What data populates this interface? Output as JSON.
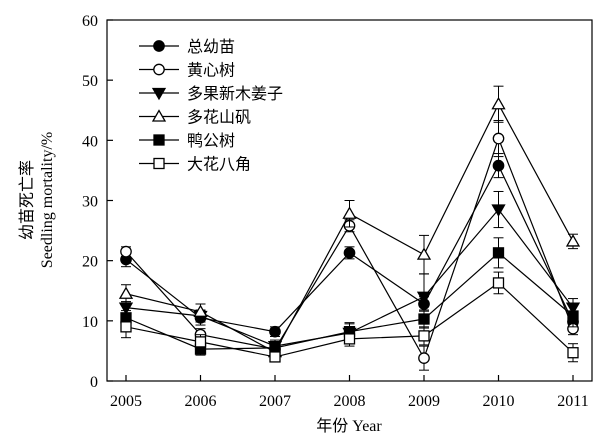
{
  "chart_data": {
    "type": "line",
    "categories": [
      "2005",
      "2006",
      "2007",
      "2008",
      "2009",
      "2010",
      "2011"
    ],
    "xlabel": "年份 Year",
    "ylabel_cn": "幼苗死亡率",
    "ylabel_en": "Seedling mortality/%",
    "ylim": [
      0,
      60
    ],
    "yticks": [
      0,
      10,
      20,
      30,
      40,
      50,
      60
    ],
    "legend_position": "top-left",
    "series": [
      {
        "name": "总幼苗",
        "marker": "circle-filled",
        "values": [
          20.2,
          10.5,
          8.2,
          21.3,
          12.8,
          35.8,
          9.8
        ],
        "errors": [
          1.2,
          1.2,
          0.8,
          1.0,
          1.2,
          2.0,
          1.2
        ]
      },
      {
        "name": "黄心树",
        "marker": "circle-open",
        "values": [
          21.5,
          7.7,
          5.3,
          25.8,
          3.8,
          40.3,
          8.7
        ],
        "errors": [
          0.8,
          1.0,
          0.8,
          1.0,
          2.0,
          3.0,
          1.0
        ]
      },
      {
        "name": "多果新木姜子",
        "marker": "triangle-down-filled",
        "values": [
          12.2,
          10.8,
          5.8,
          8.0,
          14.0,
          28.5,
          12.2
        ],
        "errors": [
          1.0,
          1.0,
          1.0,
          1.5,
          3.8,
          3.0,
          1.5
        ]
      },
      {
        "name": "多花山矾",
        "marker": "triangle-up-open",
        "values": [
          14.5,
          11.5,
          4.8,
          27.8,
          21.0,
          46.0,
          23.2
        ],
        "errors": [
          1.5,
          1.3,
          1.0,
          2.2,
          3.2,
          3.0,
          1.2
        ]
      },
      {
        "name": "鸭公树",
        "marker": "square-filled",
        "values": [
          10.5,
          5.3,
          5.5,
          8.2,
          10.3,
          21.3,
          10.8
        ],
        "errors": [
          1.2,
          1.0,
          1.0,
          1.5,
          1.5,
          2.5,
          1.8
        ]
      },
      {
        "name": "大花八角",
        "marker": "square-open",
        "values": [
          9.0,
          6.5,
          4.0,
          7.0,
          7.5,
          16.3,
          4.7
        ],
        "errors": [
          1.8,
          1.2,
          0.8,
          1.2,
          1.5,
          1.8,
          1.5
        ]
      }
    ]
  }
}
